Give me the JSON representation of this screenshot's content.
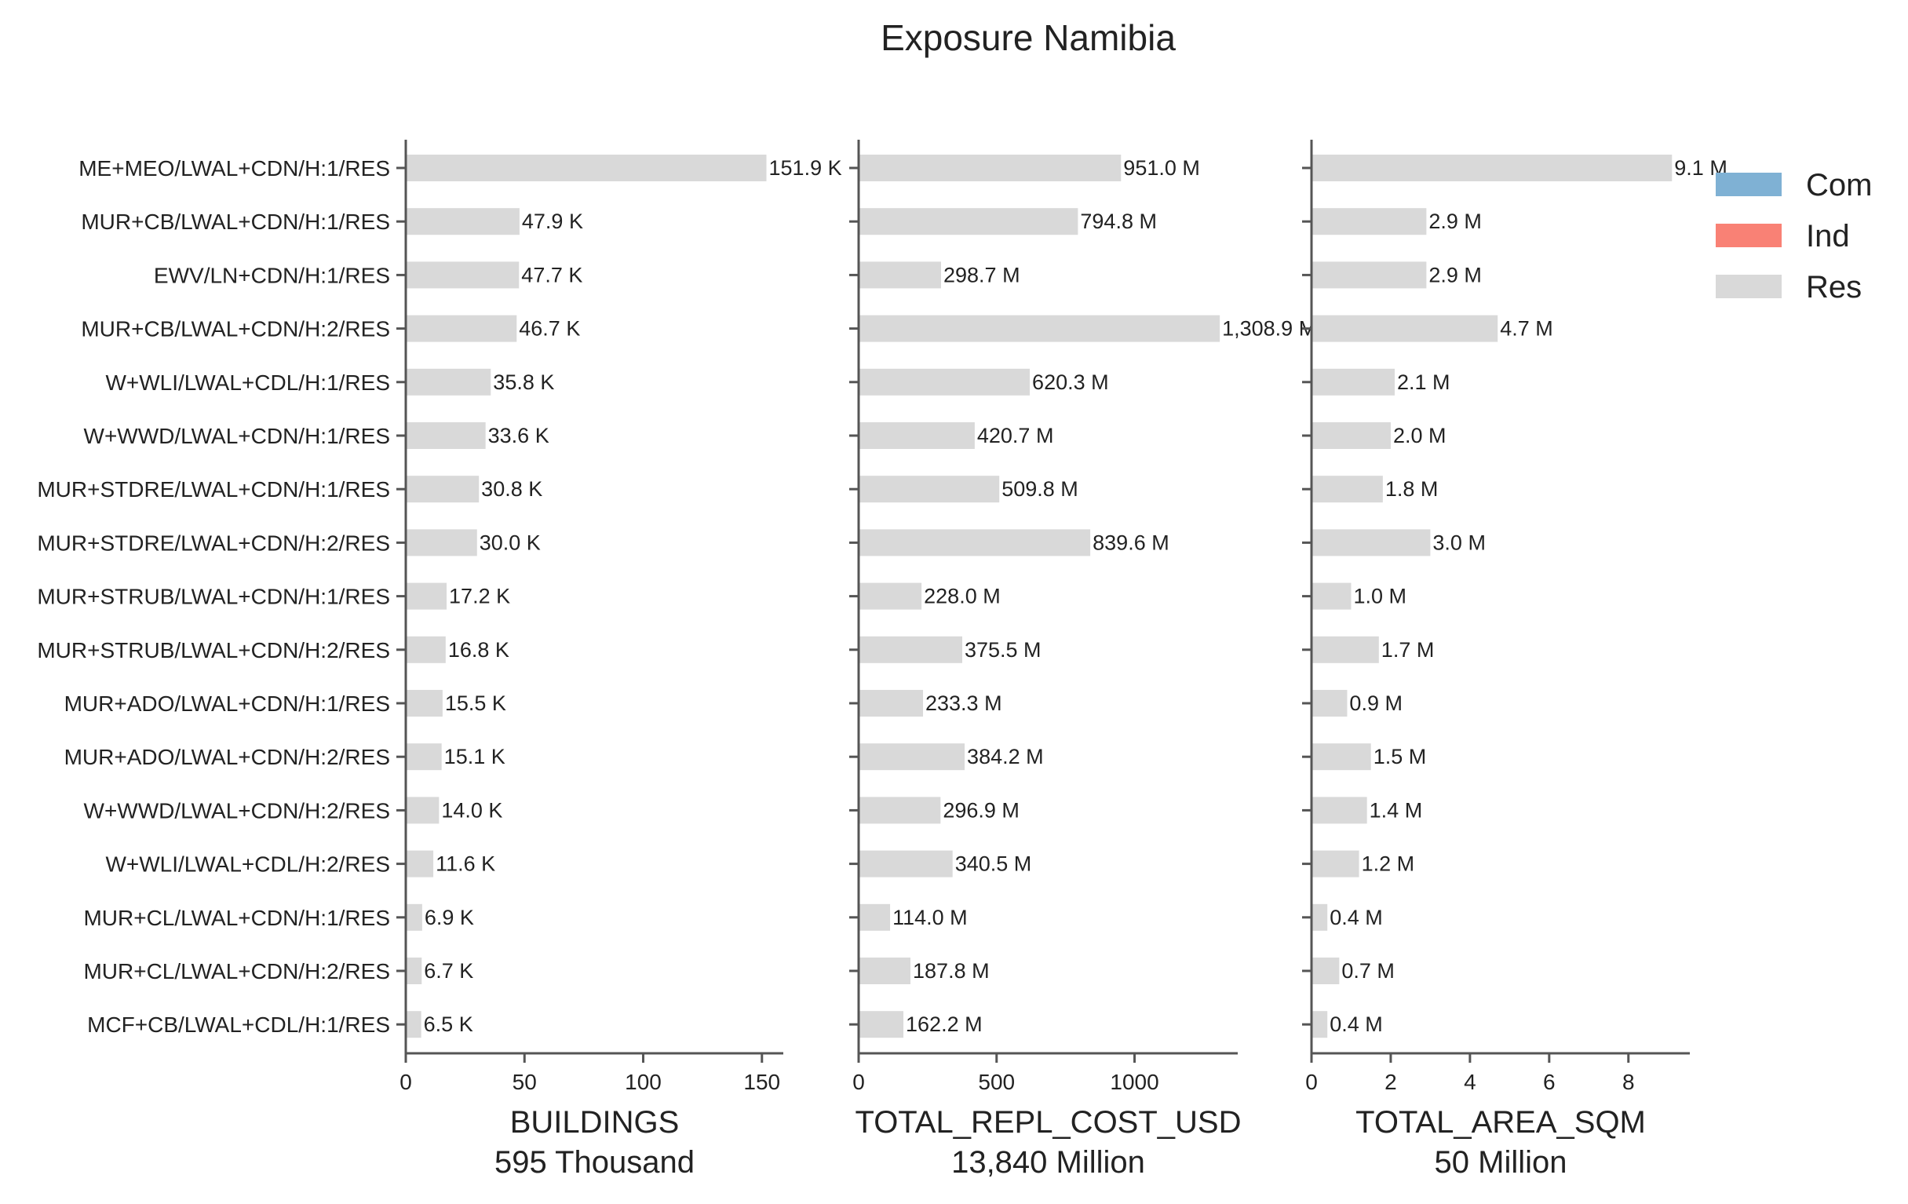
{
  "title": "Exposure Namibia",
  "colors": {
    "Com": "#7fb1d4",
    "Ind": "#f98175",
    "Res": "#d9d9d9",
    "axis": "#555555",
    "text": "#222222"
  },
  "legend": {
    "placement": "top-right",
    "entries": [
      {
        "label": "Com",
        "color_key": "Com"
      },
      {
        "label": "Ind",
        "color_key": "Ind"
      },
      {
        "label": "Res",
        "color_key": "Res"
      }
    ]
  },
  "chart_data": {
    "type": "bar",
    "orientation": "horizontal",
    "title": "Exposure Namibia",
    "categories": [
      "ME+MEO/LWAL+CDN/H:1/RES",
      "MUR+CB/LWAL+CDN/H:1/RES",
      "EWV/LN+CDN/H:1/RES",
      "MUR+CB/LWAL+CDN/H:2/RES",
      "W+WLI/LWAL+CDL/H:1/RES",
      "W+WWD/LWAL+CDN/H:1/RES",
      "MUR+STDRE/LWAL+CDN/H:1/RES",
      "MUR+STDRE/LWAL+CDN/H:2/RES",
      "MUR+STRUB/LWAL+CDN/H:1/RES",
      "MUR+STRUB/LWAL+CDN/H:2/RES",
      "MUR+ADO/LWAL+CDN/H:1/RES",
      "MUR+ADO/LWAL+CDN/H:2/RES",
      "W+WWD/LWAL+CDN/H:2/RES",
      "W+WLI/LWAL+CDL/H:2/RES",
      "MUR+CL/LWAL+CDN/H:1/RES",
      "MUR+CL/LWAL+CDN/H:2/RES",
      "MCF+CB/LWAL+CDL/H:1/RES"
    ],
    "panels": [
      {
        "xlabel": "BUILDINGS",
        "subtitle": "595 Thousand",
        "xlim": [
          0,
          159
        ],
        "xticks": [
          0,
          50,
          100,
          150
        ],
        "xtick_labels": [
          "0",
          "50",
          "100",
          "150"
        ],
        "series": [
          {
            "name": "Res",
            "color_key": "Res",
            "values": [
              151.9,
              47.9,
              47.7,
              46.7,
              35.8,
              33.6,
              30.8,
              30.0,
              17.2,
              16.8,
              15.5,
              15.1,
              14.0,
              11.6,
              6.9,
              6.7,
              6.5
            ],
            "labels": [
              "151.9 K",
              "47.9 K",
              "47.7 K",
              "46.7 K",
              "35.8 K",
              "33.6 K",
              "30.8 K",
              "30.0 K",
              "17.2 K",
              "16.8 K",
              "15.5 K",
              "15.1 K",
              "14.0 K",
              "11.6 K",
              "6.9 K",
              "6.7 K",
              "6.5 K"
            ]
          }
        ]
      },
      {
        "xlabel": "TOTAL_REPL_COST_USD",
        "subtitle": "13,840 Million",
        "xlim": [
          0,
          1374
        ],
        "xticks": [
          0,
          500,
          1000
        ],
        "xtick_labels": [
          "0",
          "500",
          "1000"
        ],
        "series": [
          {
            "name": "Res",
            "color_key": "Res",
            "values": [
              951.0,
              794.8,
              298.7,
              1308.9,
              620.3,
              420.7,
              509.8,
              839.6,
              228.0,
              375.5,
              233.3,
              384.2,
              296.9,
              340.5,
              114.0,
              187.8,
              162.2
            ],
            "labels": [
              "951.0 M",
              "794.8 M",
              "298.7 M",
              "1,308.9 M",
              "620.3 M",
              "420.7 M",
              "509.8 M",
              "839.6 M",
              "228.0 M",
              "375.5 M",
              "233.3 M",
              "384.2 M",
              "296.9 M",
              "340.5 M",
              "114.0 M",
              "187.8 M",
              "162.2 M"
            ]
          }
        ]
      },
      {
        "xlabel": "TOTAL_AREA_SQM",
        "subtitle": "50 Million",
        "xlim": [
          0,
          9.55
        ],
        "xticks": [
          0,
          2,
          4,
          6,
          8
        ],
        "xtick_labels": [
          "0",
          "2",
          "4",
          "6",
          "8"
        ],
        "series": [
          {
            "name": "Res",
            "color_key": "Res",
            "values": [
              9.1,
              2.9,
              2.9,
              4.7,
              2.1,
              2.0,
              1.8,
              3.0,
              1.0,
              1.7,
              0.9,
              1.5,
              1.4,
              1.2,
              0.4,
              0.7,
              0.4
            ],
            "labels": [
              "9.1 M",
              "2.9 M",
              "2.9 M",
              "4.7 M",
              "2.1 M",
              "2.0 M",
              "1.8 M",
              "3.0 M",
              "1.0 M",
              "1.7 M",
              "0.9 M",
              "1.5 M",
              "1.4 M",
              "1.2 M",
              "0.4 M",
              "0.7 M",
              "0.4 M"
            ]
          }
        ]
      }
    ]
  }
}
